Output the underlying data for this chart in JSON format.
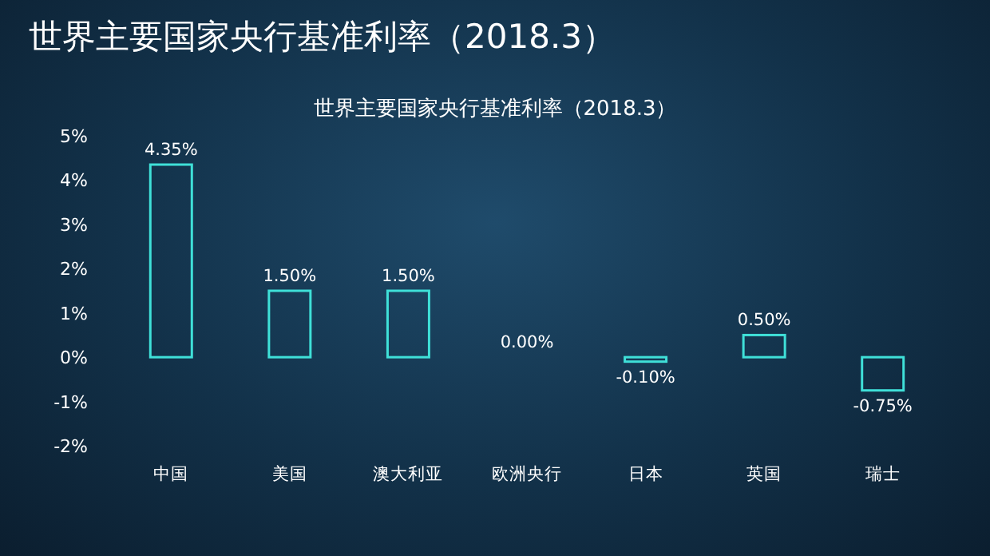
{
  "chart_data": {
    "type": "bar",
    "title": "世界主要国家央行基准利率（2018.3）",
    "subtitle": "世界主要国家央行基准利率（2018.3）",
    "categories": [
      "中国",
      "美国",
      "澳大利亚",
      "欧洲央行",
      "日本",
      "英国",
      "瑞士"
    ],
    "values": [
      4.35,
      1.5,
      1.5,
      0,
      -0.1,
      0.5,
      -0.75
    ],
    "value_labels": [
      "4.35%",
      "1.50%",
      "1.50%",
      "0.00%",
      "-0.10%",
      "0.50%",
      "-0.75%"
    ],
    "color": "#3fe0d8",
    "ylim": [
      -2,
      5
    ],
    "yticks": [
      {
        "value": -2,
        "label": "-2%"
      },
      {
        "value": -1,
        "label": "-1%"
      },
      {
        "value": 0,
        "label": "0%"
      },
      {
        "value": 1,
        "label": "1%"
      },
      {
        "value": 2,
        "label": "2%"
      },
      {
        "value": 3,
        "label": "3%"
      },
      {
        "value": 4,
        "label": "4%"
      },
      {
        "value": 5,
        "label": "5%"
      }
    ]
  }
}
